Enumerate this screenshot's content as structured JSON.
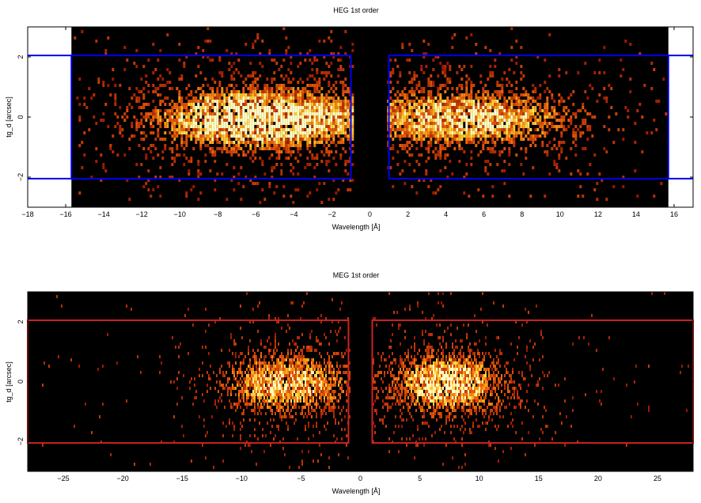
{
  "chart_data": [
    {
      "type": "heatmap",
      "title": "HEG 1st order",
      "xlabel": "Wavelength [Å]",
      "ylabel": "tg_d [arcsec]",
      "xlim": [
        -18,
        17
      ],
      "ylim": [
        -3,
        3
      ],
      "data_xlim": [
        -15.7,
        15.7
      ],
      "xticks": [
        -18,
        -16,
        -14,
        -12,
        -10,
        -8,
        -6,
        -4,
        -2,
        0,
        2,
        4,
        6,
        8,
        10,
        12,
        14,
        16
      ],
      "yticks": [
        -2,
        0,
        2
      ],
      "box_color": "#0000ee",
      "regions": [
        {
          "name": "minus order",
          "x": [
            -15.7,
            -1.0
          ],
          "y": [
            -2.05,
            2.05
          ]
        },
        {
          "name": "plus order",
          "x": [
            1.0,
            15.7
          ],
          "y": [
            -2.05,
            2.05
          ]
        }
      ],
      "intensity_peaks": [
        {
          "x": -7.5,
          "y": 0,
          "level": 1.0
        },
        {
          "x": -6.0,
          "y": 0,
          "level": 1.0
        },
        {
          "x": -3.5,
          "y": 0,
          "level": 0.8
        },
        {
          "x": 3.0,
          "y": 0,
          "level": 0.8
        },
        {
          "x": 6.5,
          "y": 0,
          "level": 1.0
        }
      ]
    },
    {
      "type": "heatmap",
      "title": "MEG 1st order",
      "xlabel": "Wavelength [Å]",
      "ylabel": "tg_d [arcsec]",
      "xlim": [
        -28,
        28
      ],
      "ylim": [
        -3,
        3
      ],
      "xticks": [
        -25,
        -20,
        -15,
        -10,
        -5,
        0,
        5,
        10,
        15,
        20,
        25
      ],
      "yticks": [
        -2,
        0,
        2
      ],
      "box_color": "#cc2222",
      "regions": [
        {
          "name": "minus order",
          "x": [
            -28,
            -1.0
          ],
          "y": [
            -2.05,
            2.05
          ]
        },
        {
          "name": "plus order",
          "x": [
            1.0,
            28
          ],
          "y": [
            -2.05,
            2.05
          ]
        }
      ],
      "intensity_peaks": [
        {
          "x": -7.5,
          "y": 0,
          "level": 1.0
        },
        {
          "x": -4.0,
          "y": 0,
          "level": 0.7
        },
        {
          "x": 6.5,
          "y": 0,
          "level": 1.0
        },
        {
          "x": 8.5,
          "y": 0,
          "level": 0.8
        }
      ]
    }
  ]
}
